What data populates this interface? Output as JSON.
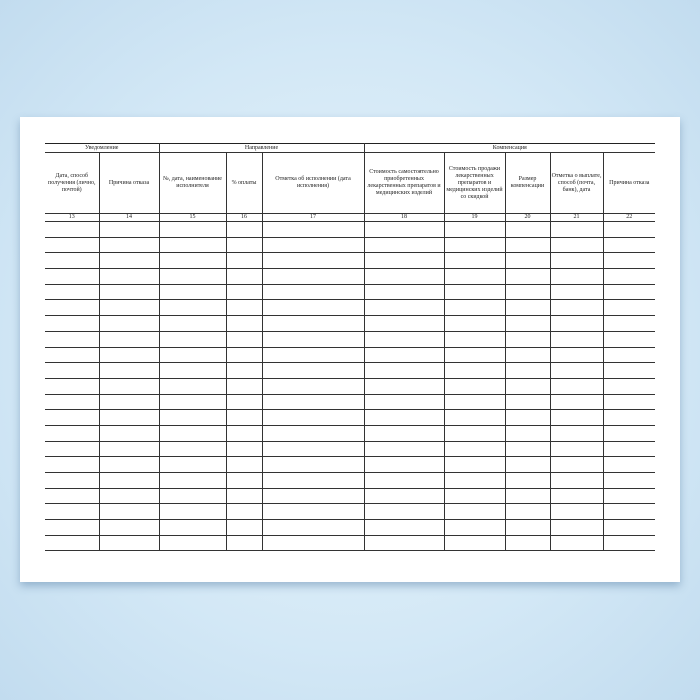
{
  "groups": [
    {
      "label": "Уведомление",
      "span": 2
    },
    {
      "label": "Направление",
      "span": 3
    },
    {
      "label": "Компенсация",
      "span": 5
    }
  ],
  "columns": [
    {
      "label": "Дата, способ получения (лично, почтой)",
      "number": "13"
    },
    {
      "label": "Причина отказа",
      "number": "14"
    },
    {
      "label": "№, дата, наименование исполнителя",
      "number": "15"
    },
    {
      "label": "% оплаты",
      "number": "16"
    },
    {
      "label": "Отметка об исполнении (дата исполнения)",
      "number": "17"
    },
    {
      "label": "Стоимость самостоятельно приобретенных лекарственных препаратов и медицинских изделий",
      "number": "18"
    },
    {
      "label": "Стоимость продажи лекарственных препаратов и медицинских изделий со скидкой",
      "number": "19"
    },
    {
      "label": "Размер компенсации",
      "number": "20"
    },
    {
      "label": "Отметка о выплате, способ (почта, банк), дата",
      "number": "21"
    },
    {
      "label": "Причина отказа",
      "number": "22"
    }
  ]
}
